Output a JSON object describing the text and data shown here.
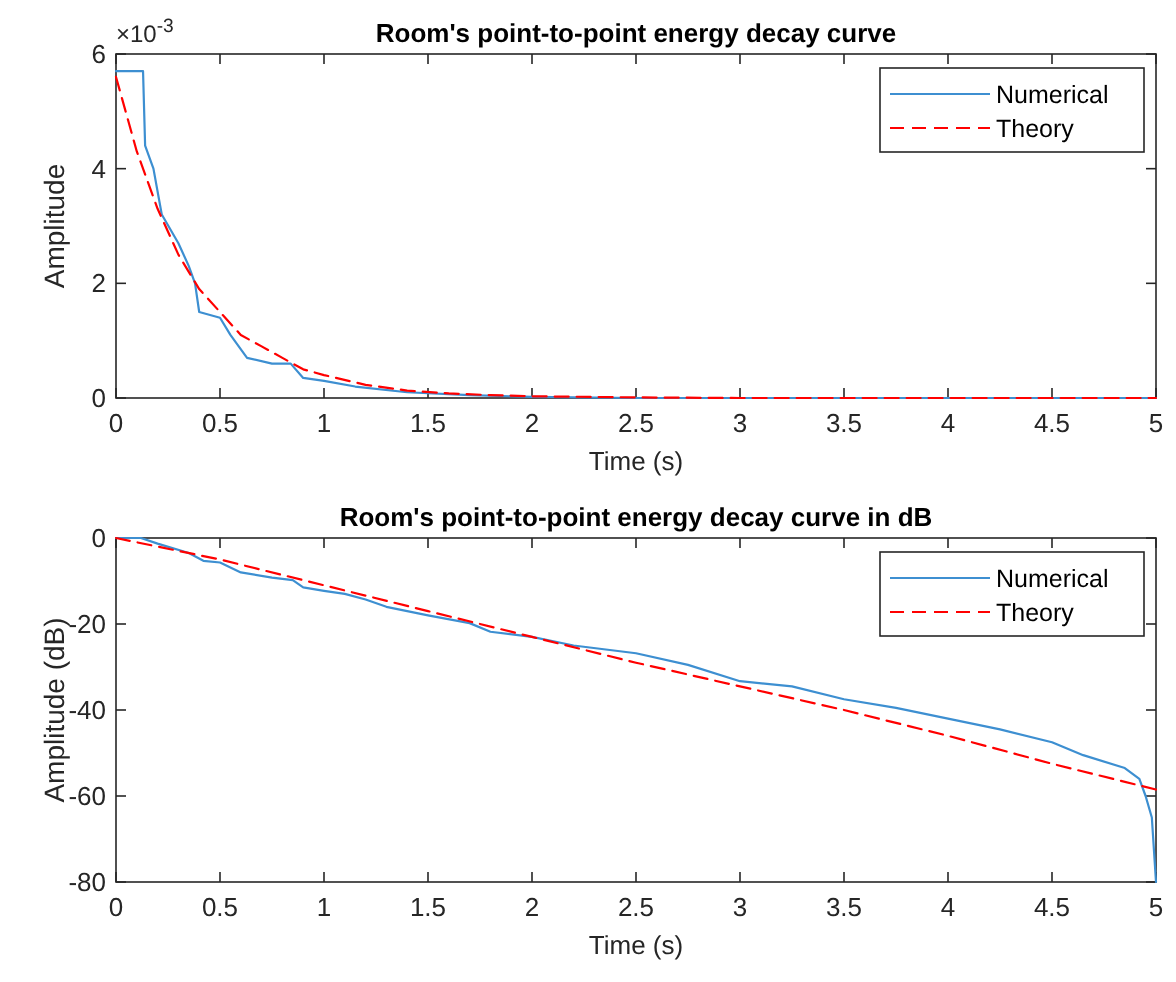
{
  "chart_data": [
    {
      "type": "line",
      "title": "Room's point-to-point energy decay curve",
      "xlabel": "Time (s)",
      "ylabel": "Amplitude",
      "annotations": [
        "×10$^{-3}$"
      ],
      "xlim": [
        0,
        5
      ],
      "xticks": [
        0,
        0.5,
        1,
        1.5,
        2,
        2.5,
        3,
        3.5,
        4,
        4.5,
        5
      ],
      "ylim": [
        0,
        6
      ],
      "yticks": [
        0,
        2,
        4,
        6
      ],
      "grid": false,
      "legend": "top right",
      "series": [
        {
          "name": "Numerical",
          "color": "#3d8fd1",
          "line_style": "solid",
          "x": [
            0,
            0.13,
            0.14,
            0.18,
            0.22,
            0.3,
            0.35,
            0.38,
            0.4,
            0.5,
            0.55,
            0.63,
            0.75,
            0.84,
            0.9,
            1.0,
            1.15,
            1.4,
            1.7,
            2.0,
            2.5,
            3,
            3.5,
            4,
            4.5,
            5
          ],
          "values": [
            5.7,
            5.7,
            4.4,
            4.0,
            3.2,
            2.7,
            2.3,
            2.0,
            1.5,
            1.4,
            1.1,
            0.7,
            0.6,
            0.6,
            0.35,
            0.3,
            0.2,
            0.1,
            0.05,
            0.02,
            0,
            0,
            0,
            0,
            0,
            0
          ]
        },
        {
          "name": "Theory",
          "color": "#ff0000",
          "line_style": "dashed",
          "x": [
            0,
            0.1,
            0.2,
            0.3,
            0.4,
            0.5,
            0.6,
            0.7,
            0.8,
            0.9,
            1.0,
            1.2,
            1.4,
            1.6,
            1.8,
            2.0,
            2.5,
            3,
            3.5,
            4,
            4.5,
            5
          ],
          "values": [
            5.6,
            4.3,
            3.3,
            2.5,
            1.9,
            1.5,
            1.1,
            0.9,
            0.7,
            0.5,
            0.4,
            0.23,
            0.13,
            0.08,
            0.05,
            0.03,
            0.01,
            0,
            0,
            0,
            0,
            0
          ]
        }
      ]
    },
    {
      "type": "line",
      "title": "Room's point-to-point energy decay curve in dB",
      "xlabel": "Time (s)",
      "ylabel": "Amplitude (dB)",
      "xlim": [
        0,
        5
      ],
      "xticks": [
        0,
        0.5,
        1,
        1.5,
        2,
        2.5,
        3,
        3.5,
        4,
        4.5,
        5
      ],
      "ylim": [
        -80,
        0
      ],
      "yticks": [
        -80,
        -60,
        -40,
        -20,
        0
      ],
      "grid": false,
      "legend": "top right",
      "series": [
        {
          "name": "Numerical",
          "color": "#3d8fd1",
          "line_style": "solid",
          "x": [
            0,
            0.12,
            0.2,
            0.35,
            0.42,
            0.5,
            0.6,
            0.75,
            0.85,
            0.9,
            1.0,
            1.1,
            1.2,
            1.3,
            1.5,
            1.7,
            1.8,
            2.0,
            2.2,
            2.5,
            2.75,
            3.0,
            3.25,
            3.5,
            3.75,
            4.0,
            4.25,
            4.5,
            4.65,
            4.85,
            4.92,
            4.95,
            4.98,
            5.0
          ],
          "values": [
            0,
            0,
            -1.3,
            -3.5,
            -5.3,
            -5.7,
            -8,
            -9.2,
            -9.8,
            -11.5,
            -12.3,
            -13,
            -14.3,
            -16,
            -18,
            -19.8,
            -21.8,
            -23,
            -25,
            -26.8,
            -29.5,
            -33.3,
            -34.5,
            -37.5,
            -39.5,
            -42,
            -44.5,
            -47.5,
            -50.5,
            -53.5,
            -56,
            -60,
            -65,
            -80
          ]
        },
        {
          "name": "Theory",
          "color": "#ff0000",
          "line_style": "dashed",
          "x": [
            0,
            0.5,
            1,
            1.5,
            2,
            2.5,
            3,
            3.5,
            4,
            4.5,
            5
          ],
          "values": [
            0,
            -5,
            -11,
            -17,
            -23,
            -29,
            -34.5,
            -40,
            -46,
            -52.5,
            -58.5
          ]
        }
      ]
    }
  ]
}
